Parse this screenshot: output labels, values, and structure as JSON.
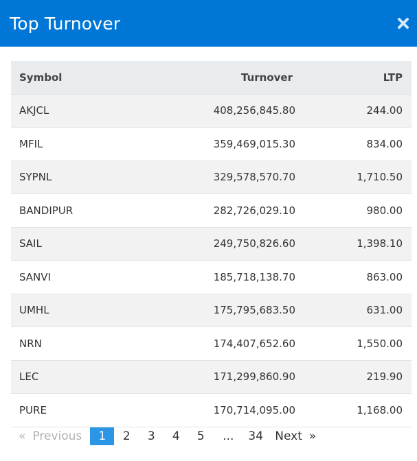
{
  "modal": {
    "title": "Top Turnover"
  },
  "table": {
    "columns": [
      "Symbol",
      "Turnover",
      "LTP"
    ],
    "rows": [
      {
        "symbol": "AKJCL",
        "turnover": "408,256,845.80",
        "ltp": "244.00"
      },
      {
        "symbol": "MFIL",
        "turnover": "359,469,015.30",
        "ltp": "834.00"
      },
      {
        "symbol": "SYPNL",
        "turnover": "329,578,570.70",
        "ltp": "1,710.50"
      },
      {
        "symbol": "BANDIPUR",
        "turnover": "282,726,029.10",
        "ltp": "980.00"
      },
      {
        "symbol": "SAIL",
        "turnover": "249,750,826.60",
        "ltp": "1,398.10"
      },
      {
        "symbol": "SANVI",
        "turnover": "185,718,138.70",
        "ltp": "863.00"
      },
      {
        "symbol": "UMHL",
        "turnover": "175,795,683.50",
        "ltp": "631.00"
      },
      {
        "symbol": "NRN",
        "turnover": "174,407,652.60",
        "ltp": "1,550.00"
      },
      {
        "symbol": "LEC",
        "turnover": "171,299,860.90",
        "ltp": "219.90"
      },
      {
        "symbol": "PURE",
        "turnover": "170,714,095.00",
        "ltp": "1,168.00"
      }
    ]
  },
  "pagination": {
    "prev_symbol": "«",
    "prev_label": "Previous",
    "pages": [
      "1",
      "2",
      "3",
      "4",
      "5"
    ],
    "current_page": "1",
    "ellipsis": "...",
    "last_page": "34",
    "next_label": "Next",
    "next_symbol": "»"
  },
  "colors": {
    "header_bg": "#0077d6",
    "active_page_bg": "#2b96e6",
    "table_head_bg": "#e9ecef",
    "row_stripe": "#f2f2f2"
  },
  "icons": {
    "close": "close-icon"
  }
}
